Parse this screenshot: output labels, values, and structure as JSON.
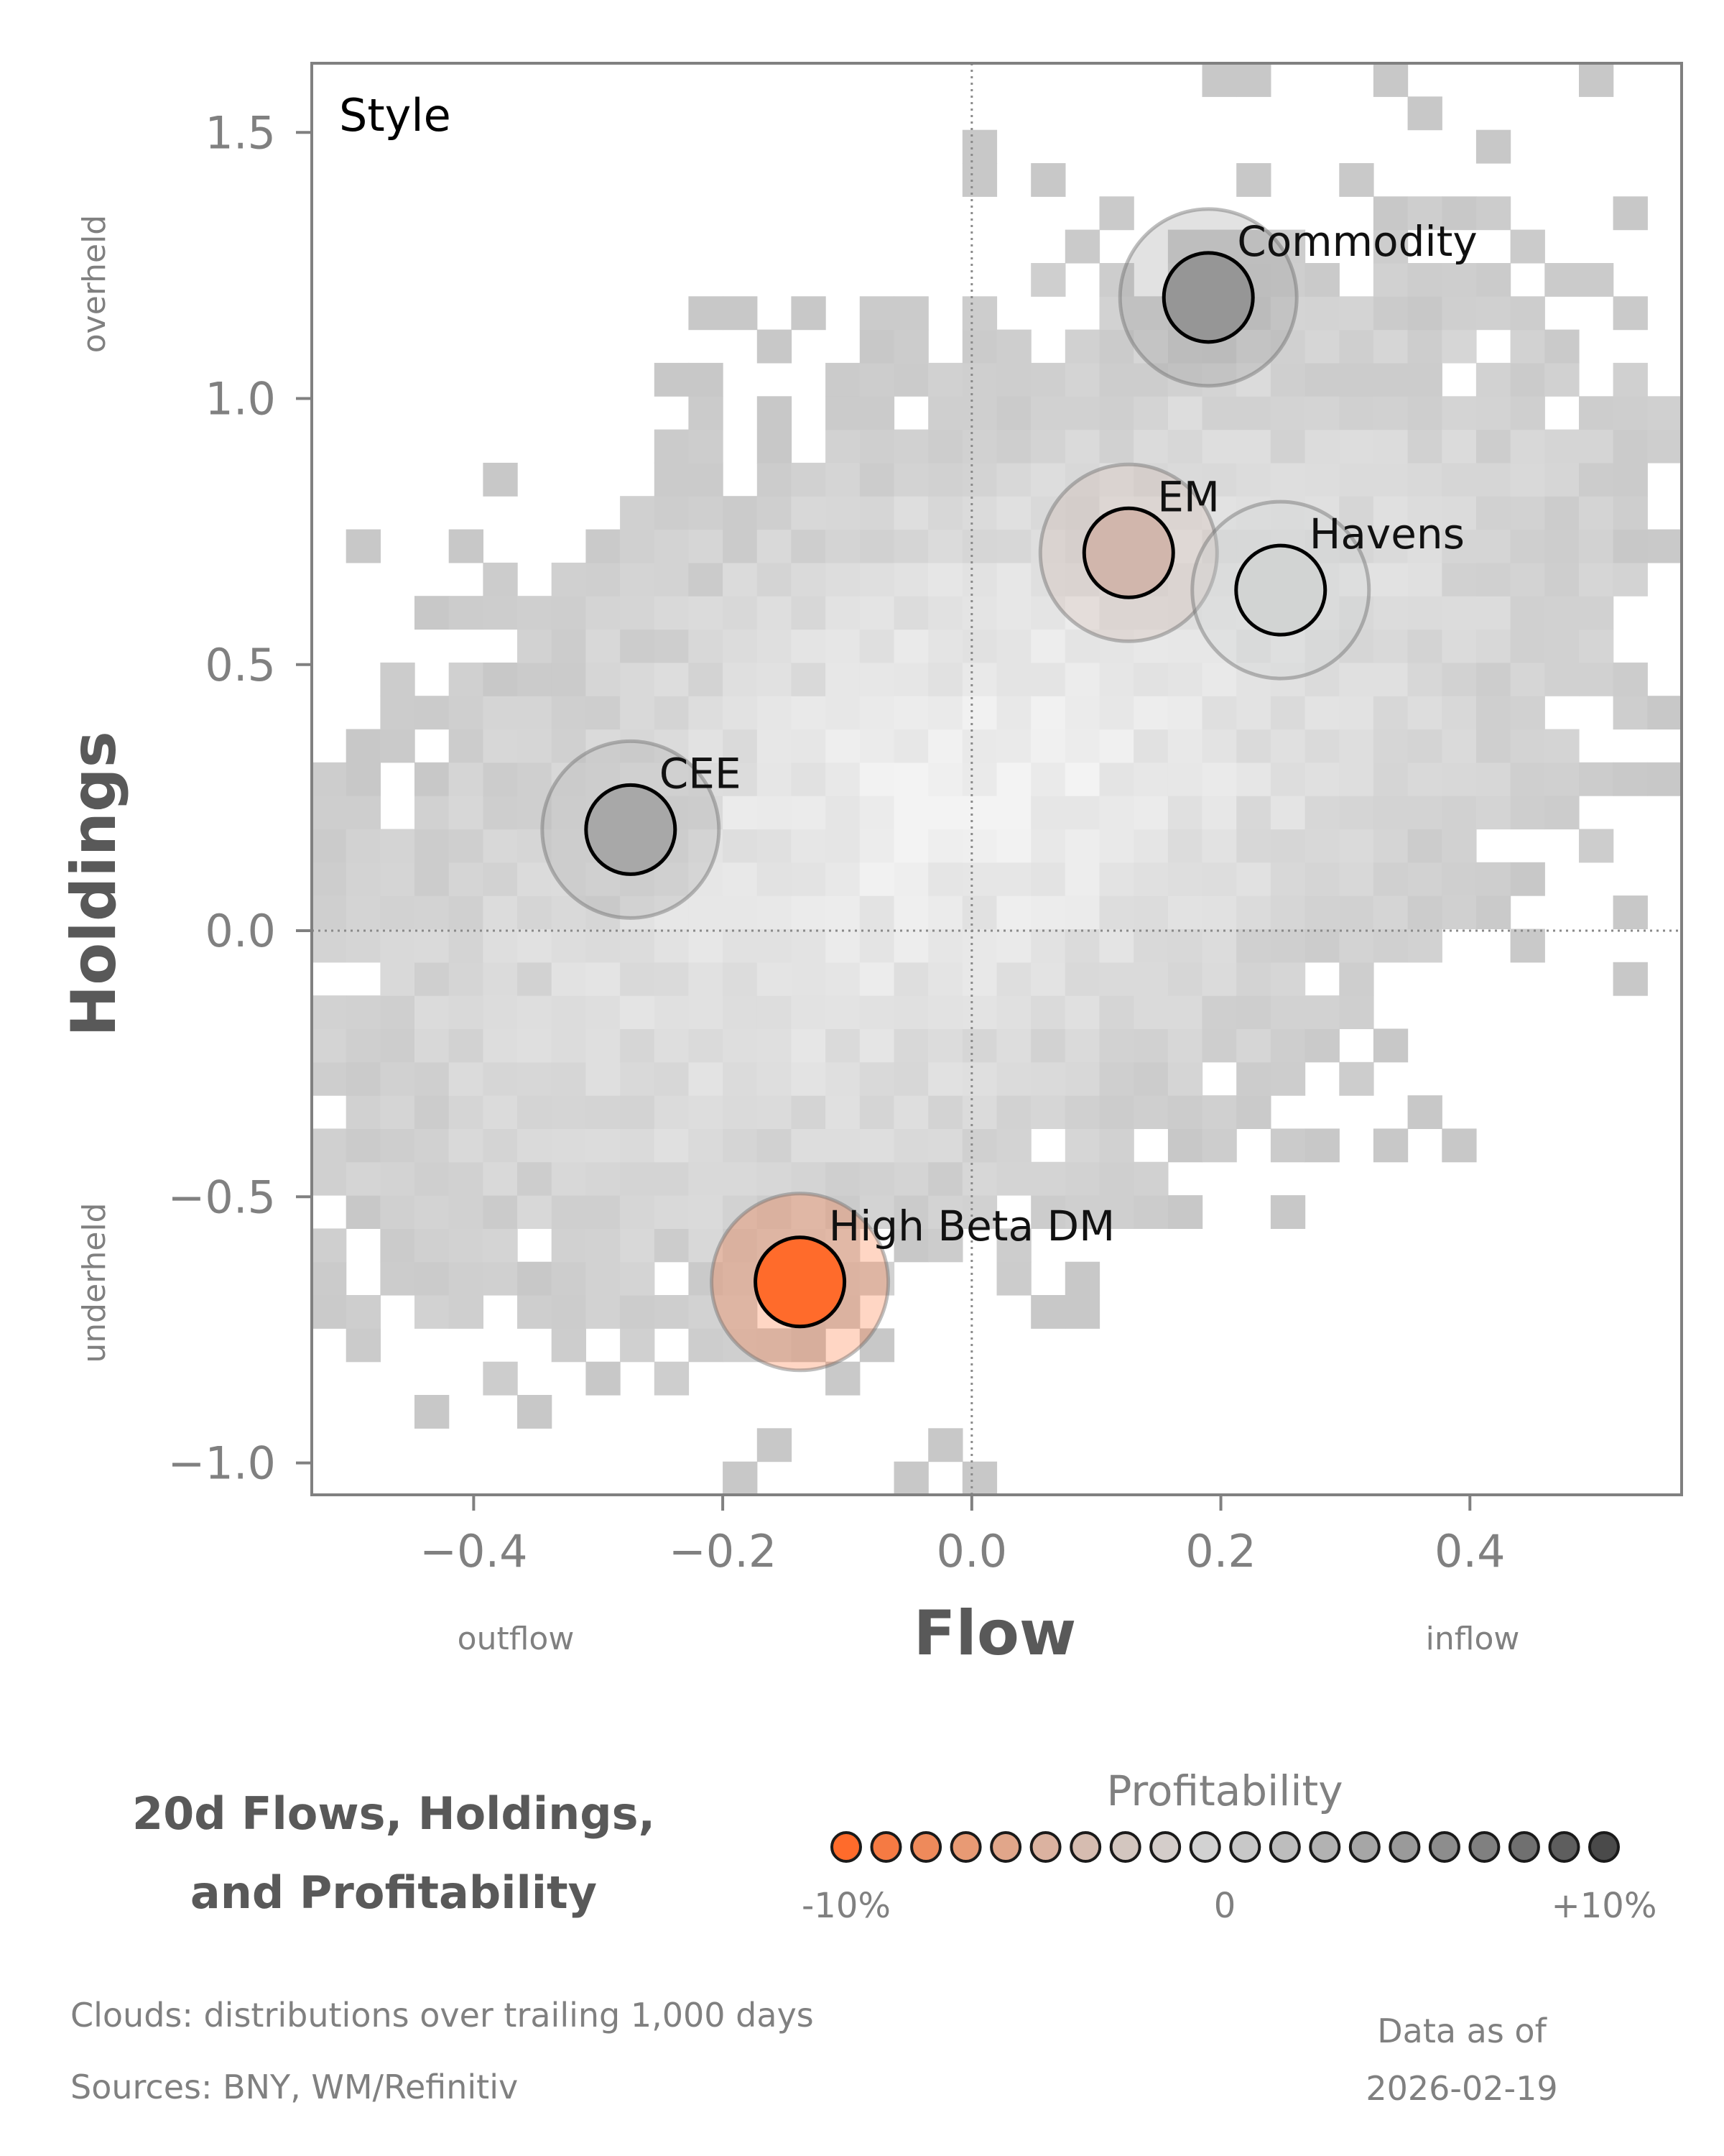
{
  "chart_data": {
    "type": "scatter",
    "panel_label": "Style",
    "xlabel": "Flow",
    "ylabel": "Holdings",
    "x_low_label": "outflow",
    "x_high_label": "inflow",
    "y_high_label": "overheld",
    "y_low_label": "underheld",
    "xlim": [
      -0.53,
      0.57
    ],
    "ylim": [
      -1.06,
      1.63
    ],
    "xticks": [
      -0.4,
      -0.2,
      0.0,
      0.2,
      0.4
    ],
    "xtick_labels": [
      "−0.4",
      "−0.2",
      "0.0",
      "0.2",
      "0.4"
    ],
    "yticks": [
      -1.0,
      -0.5,
      0.0,
      0.5,
      1.0,
      1.5
    ],
    "ytick_labels": [
      "−1.0",
      "−0.5",
      "0.0",
      "0.5",
      "1.0",
      "1.5"
    ],
    "points": [
      {
        "label": "Commodity",
        "x": 0.19,
        "y": 1.19,
        "profitability": 7,
        "color": "#969696"
      },
      {
        "label": "EM",
        "x": 0.126,
        "y": 0.71,
        "profitability": -3,
        "color": "#d1b6ac"
      },
      {
        "label": "Havens",
        "x": 0.248,
        "y": 0.64,
        "profitability": 1,
        "color": "#d2d4d3"
      },
      {
        "label": "CEE",
        "x": -0.274,
        "y": 0.19,
        "profitability": 6,
        "color": "#a8a8a8"
      },
      {
        "label": "High Beta DM",
        "x": -0.138,
        "y": -0.66,
        "profitability": -10,
        "color": "#ff6b2b"
      }
    ],
    "cloud_note": "distributions over trailing 1,000 days"
  },
  "title_lines": [
    "20d Flows, Holdings,",
    "and Profitability"
  ],
  "legend": {
    "title": "Profitability",
    "tick_min": "-10%",
    "tick_mid": "0",
    "tick_max": "+10%",
    "swatches": [
      "#ff6b2b",
      "#f57a43",
      "#ee8a5b",
      "#e89a74",
      "#e1a68a",
      "#dbb2a0",
      "#d6bcb0",
      "#d3c6bf",
      "#d4cdca",
      "#d2d2d2",
      "#c8c8c8",
      "#bdbdbd",
      "#b2b2b2",
      "#a6a6a6",
      "#9a9a9a",
      "#8d8d8d",
      "#808080",
      "#707070",
      "#5e5e5e",
      "#4a4a4a"
    ]
  },
  "footnotes": {
    "clouds": "Clouds:  distributions over trailing 1,000 days",
    "sources": "Sources:  BNY, WM/Refinitiv"
  },
  "date_block": [
    "Data as of",
    "2026-02-19"
  ],
  "colors": {
    "axis": "#808080",
    "cloud": "#c8c8c8",
    "ring_stroke": "#6e6e6e"
  }
}
